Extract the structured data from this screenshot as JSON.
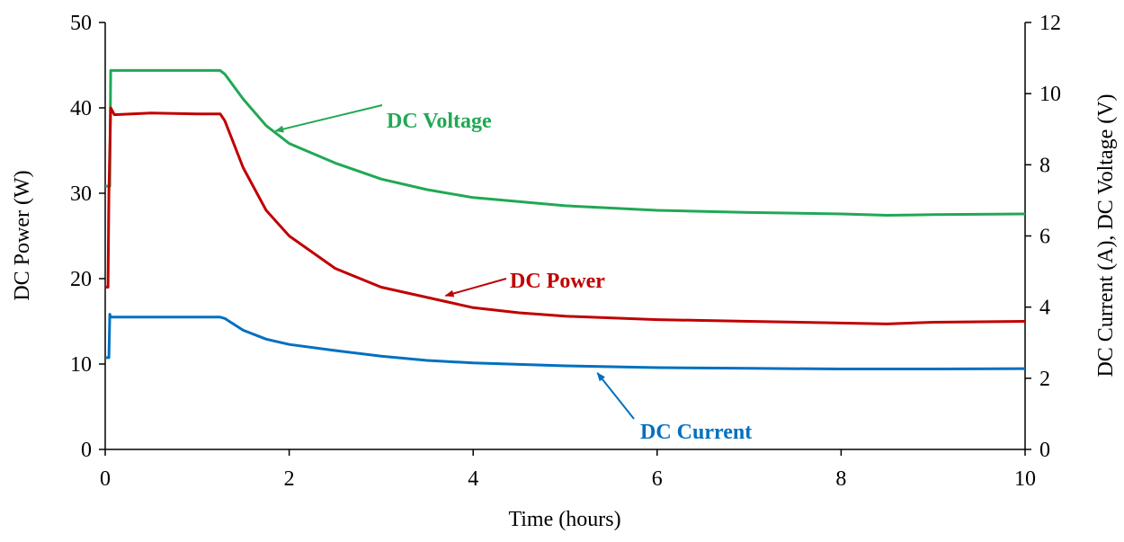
{
  "chart_data": {
    "type": "line",
    "xlabel": "Time (hours)",
    "ylabel_left": "DC Power  (W)",
    "ylabel_right": "DC Current (A),  DC Voltage (V)",
    "xlim": [
      0,
      10
    ],
    "ylim_left": [
      0,
      50
    ],
    "ylim_right": [
      0,
      12
    ],
    "xticks": [
      "0",
      "2",
      "4",
      "6",
      "8",
      "10"
    ],
    "yticks_left": [
      "0",
      "10",
      "20",
      "30",
      "40",
      "50"
    ],
    "yticks_right": [
      "0",
      "2",
      "4",
      "6",
      "8",
      "10",
      "12"
    ],
    "grid": false,
    "legend": "none",
    "series": [
      {
        "name": "DC Voltage",
        "axis": "right",
        "color": "#21a854",
        "x": [
          0.0,
          0.03,
          0.05,
          0.06,
          0.1,
          0.5,
          1.0,
          1.25,
          1.3,
          1.5,
          1.75,
          2.0,
          2.5,
          3.0,
          3.5,
          4.0,
          5.0,
          6.0,
          7.0,
          8.0,
          8.5,
          9.0,
          10.0
        ],
        "values": [
          7.4,
          7.4,
          7.4,
          10.65,
          10.65,
          10.65,
          10.65,
          10.65,
          10.55,
          9.85,
          9.1,
          8.6,
          8.05,
          7.6,
          7.3,
          7.08,
          6.85,
          6.72,
          6.66,
          6.62,
          6.58,
          6.6,
          6.62
        ]
      },
      {
        "name": "DC Power",
        "axis": "left",
        "color": "#c00000",
        "x": [
          0.0,
          0.03,
          0.04,
          0.06,
          0.1,
          0.5,
          1.0,
          1.25,
          1.3,
          1.5,
          1.75,
          2.0,
          2.5,
          3.0,
          3.5,
          4.0,
          4.5,
          5.0,
          6.0,
          7.0,
          8.0,
          8.5,
          9.0,
          10.0
        ],
        "values": [
          19,
          19,
          30,
          40,
          39.2,
          39.4,
          39.3,
          39.3,
          38.5,
          33,
          28,
          25,
          21.2,
          19,
          17.8,
          16.6,
          16.0,
          15.6,
          15.2,
          15.0,
          14.8,
          14.7,
          14.9,
          15.0
        ]
      },
      {
        "name": "DC Current",
        "axis": "right",
        "color": "#0070c0",
        "x": [
          0.0,
          0.04,
          0.05,
          0.06,
          0.1,
          0.5,
          1.0,
          1.25,
          1.3,
          1.5,
          1.75,
          2.0,
          2.5,
          3.0,
          3.5,
          4.0,
          5.0,
          6.0,
          7.0,
          8.0,
          9.0,
          10.0
        ],
        "values": [
          2.58,
          2.58,
          3.8,
          3.72,
          3.72,
          3.72,
          3.72,
          3.72,
          3.68,
          3.35,
          3.1,
          2.95,
          2.78,
          2.62,
          2.5,
          2.43,
          2.35,
          2.3,
          2.28,
          2.26,
          2.26,
          2.27
        ]
      }
    ],
    "annotations": [
      {
        "text": "DC Voltage",
        "series": "DC Voltage",
        "arrow_to": [
          1.85,
          8.95
        ]
      },
      {
        "text": "DC Power",
        "series": "DC Power",
        "arrow_to": [
          3.7,
          18.0
        ]
      },
      {
        "text": "DC Current",
        "series": "DC Current",
        "arrow_to": [
          5.35,
          2.15
        ]
      }
    ]
  }
}
